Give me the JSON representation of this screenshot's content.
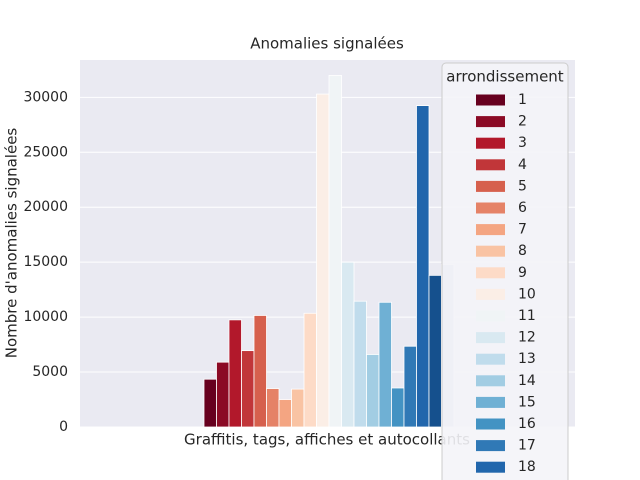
{
  "chart_data": {
    "type": "bar",
    "title": "Anomalies signalées",
    "ylabel": "Nombre d'anomalies signalées",
    "categories": [
      "Graffitis, tags, affiches et autocollants"
    ],
    "legend_title": "arrondissement",
    "legend": "upper right",
    "grid": true,
    "ylim": [
      0,
      33400
    ],
    "yticks": [
      0,
      5000,
      10000,
      15000,
      20000,
      25000,
      30000
    ],
    "series": [
      {
        "name": "1",
        "color": "#67001f",
        "values": [
          4350
        ]
      },
      {
        "name": "2",
        "color": "#8b0a25",
        "values": [
          5900
        ]
      },
      {
        "name": "3",
        "color": "#b2182b",
        "values": [
          9750
        ]
      },
      {
        "name": "4",
        "color": "#c13639",
        "values": [
          6950
        ]
      },
      {
        "name": "5",
        "color": "#d6604d",
        "values": [
          10150
        ]
      },
      {
        "name": "6",
        "color": "#e58267",
        "values": [
          3500
        ]
      },
      {
        "name": "7",
        "color": "#f4a582",
        "values": [
          2500
        ]
      },
      {
        "name": "8",
        "color": "#f9c3a3",
        "values": [
          3450
        ]
      },
      {
        "name": "9",
        "color": "#fddbc7",
        "values": [
          10350
        ]
      },
      {
        "name": "10",
        "color": "#fbeee6",
        "values": [
          30300
        ]
      },
      {
        "name": "11",
        "color": "#f0f4f6",
        "values": [
          32000
        ]
      },
      {
        "name": "12",
        "color": "#d9e9f1",
        "values": [
          15000
        ]
      },
      {
        "name": "13",
        "color": "#c0dcec",
        "values": [
          11450
        ]
      },
      {
        "name": "14",
        "color": "#a2cde3",
        "values": [
          6600
        ]
      },
      {
        "name": "15",
        "color": "#6fb0d4",
        "values": [
          11350
        ]
      },
      {
        "name": "16",
        "color": "#4393c3",
        "values": [
          3550
        ]
      },
      {
        "name": "17",
        "color": "#3079b6",
        "values": [
          7350
        ]
      },
      {
        "name": "18",
        "color": "#2166ac",
        "values": [
          29250
        ]
      },
      {
        "color": "#15508d",
        "values": [
          13800
        ]
      },
      {
        "color": "#c2c9dd",
        "values": [
          14800
        ]
      }
    ]
  }
}
